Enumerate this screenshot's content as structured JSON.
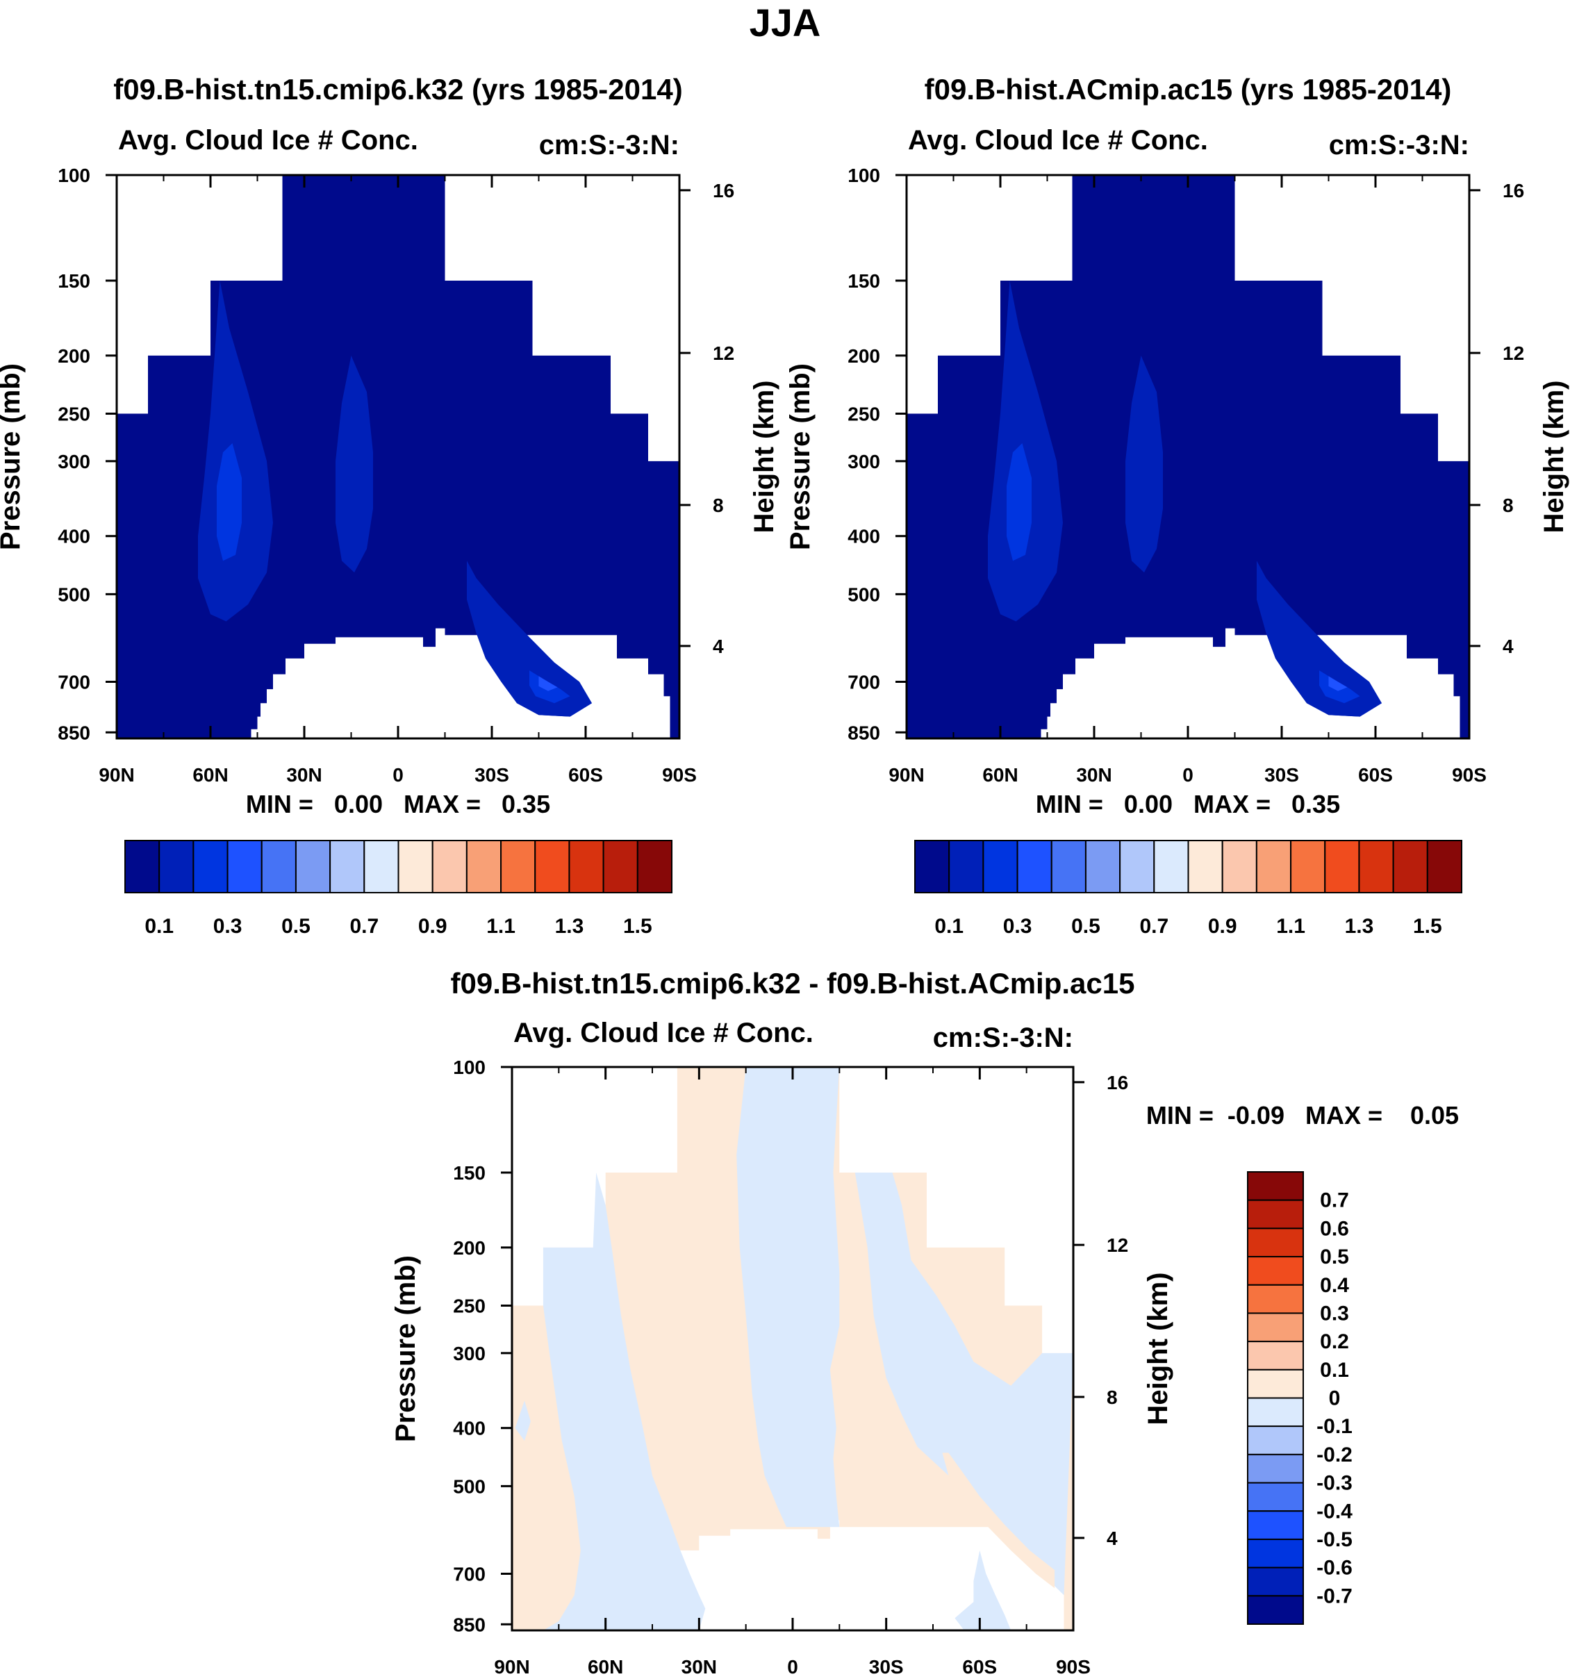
{
  "figure_title": "JJA",
  "colors": {
    "abs_scale": [
      "#000a8c",
      "#0020b8",
      "#0035e0",
      "#1e52ff",
      "#4673f5",
      "#7b9bf3",
      "#b0c7fa",
      "#dbeafd",
      "#fdead9",
      "#fbc7ae",
      "#f8a076",
      "#f6733f",
      "#f04c1e",
      "#d8330f",
      "#b81e0c",
      "#870808"
    ],
    "diff_scale": [
      "#000a8c",
      "#0020b8",
      "#0035e0",
      "#1e52ff",
      "#4673f5",
      "#7b9bf3",
      "#b0c7fa",
      "#dbeafd",
      "#fdead9",
      "#fbc7ae",
      "#f8a076",
      "#f6733f",
      "#f04c1e",
      "#d8330f",
      "#b81e0c",
      "#870808"
    ]
  },
  "chart_data": [
    {
      "type": "heatmap",
      "title": "f09.B-hist.tn15.cmip6.k32 (yrs 1985-2014)",
      "left_string": "Avg. Cloud Ice # Conc.",
      "right_string": "cm:S:-3:N:",
      "ylabel": "Pressure (mb)",
      "ylabel_right": "Height (km)",
      "x_ticks": [
        "90N",
        "60N",
        "30N",
        "0",
        "30S",
        "60S",
        "90S"
      ],
      "y_ticks": [
        "100",
        "150",
        "200",
        "250",
        "300",
        "400",
        "500",
        "700",
        "850"
      ],
      "y_ticks_right": [
        "16",
        "12",
        "8",
        "4"
      ],
      "xlim": [
        90,
        -90
      ],
      "ylim_mb": [
        870,
        100
      ],
      "min_max_text": "MIN =   0.00   MAX =   0.35",
      "min": 0.0,
      "max": 0.35,
      "colorbar_labels": [
        "0.1",
        "0.3",
        "0.5",
        "0.7",
        "0.9",
        "1.1",
        "1.3",
        "1.5"
      ],
      "colorbar_levels": [
        0.0,
        0.1,
        0.2,
        0.3,
        0.4,
        0.5,
        0.6,
        0.7,
        0.8,
        0.9,
        1.0,
        1.1,
        1.2,
        1.3,
        1.4,
        1.5
      ]
    },
    {
      "type": "heatmap",
      "title": "f09.B-hist.ACmip.ac15 (yrs 1985-2014)",
      "left_string": "Avg. Cloud Ice # Conc.",
      "right_string": "cm:S:-3:N:",
      "ylabel": "Pressure (mb)",
      "ylabel_right": "Height (km)",
      "x_ticks": [
        "90N",
        "60N",
        "30N",
        "0",
        "30S",
        "60S",
        "90S"
      ],
      "y_ticks": [
        "100",
        "150",
        "200",
        "250",
        "300",
        "400",
        "500",
        "700",
        "850"
      ],
      "y_ticks_right": [
        "16",
        "12",
        "8",
        "4"
      ],
      "xlim": [
        90,
        -90
      ],
      "ylim_mb": [
        870,
        100
      ],
      "min_max_text": "MIN =   0.00   MAX =   0.35",
      "min": 0.0,
      "max": 0.35,
      "colorbar_labels": [
        "0.1",
        "0.3",
        "0.5",
        "0.7",
        "0.9",
        "1.1",
        "1.3",
        "1.5"
      ],
      "colorbar_levels": [
        0.0,
        0.1,
        0.2,
        0.3,
        0.4,
        0.5,
        0.6,
        0.7,
        0.8,
        0.9,
        1.0,
        1.1,
        1.2,
        1.3,
        1.4,
        1.5
      ]
    },
    {
      "type": "heatmap",
      "title": "f09.B-hist.tn15.cmip6.k32 - f09.B-hist.ACmip.ac15",
      "left_string": "Avg. Cloud Ice # Conc.",
      "right_string": "cm:S:-3:N:",
      "ylabel": "Pressure (mb)",
      "ylabel_right": "Height (km)",
      "x_ticks": [
        "90N",
        "60N",
        "30N",
        "0",
        "30S",
        "60S",
        "90S"
      ],
      "y_ticks": [
        "100",
        "150",
        "200",
        "250",
        "300",
        "400",
        "500",
        "700",
        "850"
      ],
      "y_ticks_right": [
        "16",
        "12",
        "8",
        "4"
      ],
      "xlim": [
        90,
        -90
      ],
      "ylim_mb": [
        870,
        100
      ],
      "min_max_text": "MIN =  -0.09   MAX =    0.05",
      "min": -0.09,
      "max": 0.05,
      "colorbar_labels": [
        "0.7",
        "0.6",
        "0.5",
        "0.4",
        "0.3",
        "0.2",
        "0.1",
        "0",
        "-0.1",
        "-0.2",
        "-0.3",
        "-0.4",
        "-0.5",
        "-0.6",
        "-0.7"
      ],
      "colorbar_levels": [
        -0.7,
        -0.6,
        -0.5,
        -0.4,
        -0.3,
        -0.2,
        -0.1,
        0,
        0.1,
        0.2,
        0.3,
        0.4,
        0.5,
        0.6,
        0.7
      ]
    }
  ]
}
